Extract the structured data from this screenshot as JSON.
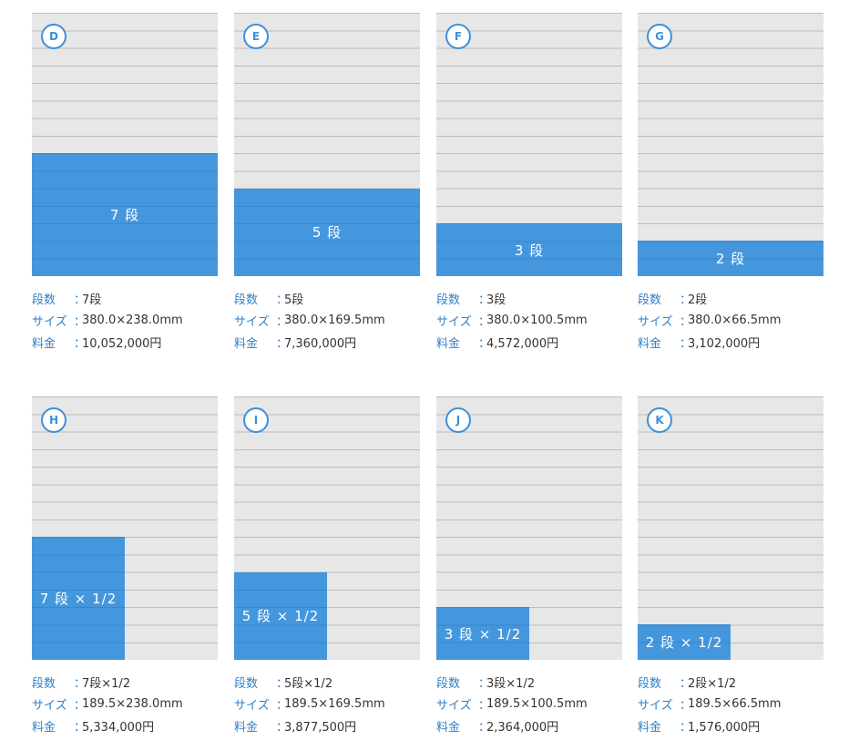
{
  "labels": {
    "dan_key": "段数",
    "size_key": "サイズ",
    "price_key": "料金",
    "colon": "："
  },
  "colors": {
    "accent": "#3d8fdc",
    "block": "#4597dd",
    "grid_bg": "#e7e7e7",
    "grid_line": "#bdbdbd",
    "key_text": "#2f7fc8",
    "value_text": "#333333"
  },
  "cards": [
    {
      "id": "D",
      "block_label": "7 段",
      "dan_value": "7段",
      "size_value": "380.0×238.0mm",
      "price_value": "10,052,000円",
      "rows_filled": 7,
      "width_fraction": 1
    },
    {
      "id": "E",
      "block_label": "5 段",
      "dan_value": "5段",
      "size_value": "380.0×169.5mm",
      "price_value": "7,360,000円",
      "rows_filled": 5,
      "width_fraction": 1
    },
    {
      "id": "F",
      "block_label": "3 段",
      "dan_value": "3段",
      "size_value": "380.0×100.5mm",
      "price_value": "4,572,000円",
      "rows_filled": 3,
      "width_fraction": 1
    },
    {
      "id": "G",
      "block_label": "2 段",
      "dan_value": "2段",
      "size_value": "380.0×66.5mm",
      "price_value": "3,102,000円",
      "rows_filled": 2,
      "width_fraction": 1
    },
    {
      "id": "H",
      "block_label": "7 段 × 1/2",
      "dan_value": "7段×1/2",
      "size_value": "189.5×238.0mm",
      "price_value": "5,334,000円",
      "rows_filled": 7,
      "width_fraction": 0.5
    },
    {
      "id": "I",
      "block_label": "5 段 × 1/2",
      "dan_value": "5段×1/2",
      "size_value": "189.5×169.5mm",
      "price_value": "3,877,500円",
      "rows_filled": 5,
      "width_fraction": 0.5
    },
    {
      "id": "J",
      "block_label": "3 段 × 1/2",
      "dan_value": "3段×1/2",
      "size_value": "189.5×100.5mm",
      "price_value": "2,364,000円",
      "rows_filled": 3,
      "width_fraction": 0.5
    },
    {
      "id": "K",
      "block_label": "2 段 × 1/2",
      "dan_value": "2段×1/2",
      "size_value": "189.5×66.5mm",
      "price_value": "1,576,000円",
      "rows_filled": 2,
      "width_fraction": 0.5
    }
  ]
}
